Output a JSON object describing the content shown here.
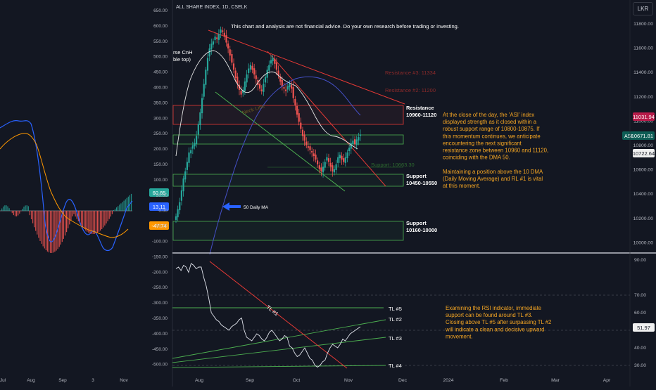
{
  "header": {
    "title": "ALL SHARE INDEX, 1D, CSELK",
    "currency_button": "LKR",
    "disclaimer": "This chart and analysis are not financial advice. Do your own research before trading or investing."
  },
  "colors": {
    "background": "#131722",
    "up": "#26a69a",
    "down": "#ef5350",
    "rsi_line": "#e0e3eb",
    "dma50": "#4550c8",
    "dma10": "#e6e6e6",
    "annotation_orange": "#f5a623",
    "trendline_red": "#e53935",
    "trendline_green": "#4caf50"
  },
  "left_panel": {
    "bubble_green": "60.85",
    "bubble_blue": "13.11",
    "bubble_orange": "-47.74",
    "axis_labels": [
      "650.00",
      "600.00",
      "550.00",
      "500.00",
      "450.00",
      "400.00",
      "350.00",
      "300.00",
      "250.00",
      "200.00",
      "150.00",
      "100.00",
      "50.00",
      "0.00",
      "-50.00",
      "-100.00",
      "-150.00",
      "-200.00",
      "-250.00",
      "-300.00",
      "-350.00",
      "-400.00",
      "-450.00",
      "-500.00"
    ],
    "time_labels": [
      "Jul",
      "Aug",
      "Sep",
      "3",
      "Nov"
    ]
  },
  "main_chart": {
    "pattern_label_line1": "rse CnH",
    "pattern_label_line2": "ble top)",
    "resistance_3": "Resistance #3: 11334",
    "resistance_2": "Resistance #2: 11200",
    "resistance_zone_line1": "Resistance",
    "resistance_zone_line2": "10960-11120",
    "neck_line": "Neck Line",
    "support_1_label": "Support: 10663.30",
    "support_zone_1_line1": "Support",
    "support_zone_1_line2": "10450-10550",
    "support_zone_2_line1": "Support",
    "support_zone_2_line2": "10160-10000",
    "dma_label": "50 Daily MA",
    "analysis_text": [
      "At the close of the day, the 'ASI' index",
      "displayed strength as it closed within a",
      "robust support range of 10800-10875. If",
      "this momentum continues, we anticipate",
      "encountering the next significant",
      "resistance zone between 10960 and 11120,",
      "coinciding with the DMA 50.",
      "",
      "Maintaining a position above the 10 DMA",
      "(Daily Moving Average) and RL #1 is vital",
      "at this moment."
    ],
    "price_axis": [
      "11800.00",
      "11600.00",
      "11400.00",
      "11200.00",
      "11000.00",
      "10800.00",
      "10600.00",
      "10400.00",
      "10200.00",
      "10000.00"
    ],
    "price_tag_red": "11031.94",
    "price_tag_asi_symbol": "ASI",
    "price_tag_asi": "10671.81",
    "price_tag_white": "10722.64"
  },
  "rsi_panel": {
    "axis_labels": [
      "90.00",
      "70.00",
      "60.00",
      "50.00",
      "40.00",
      "30.00"
    ],
    "rsi_tag": "51.97",
    "tl_labels": [
      "TL #5",
      "TL #2",
      "TL #3",
      "TL #4",
      "TL #1"
    ],
    "analysis_text": [
      "Examining the RSI indicator, immediate",
      "support can be found around TL #3.",
      "Closing above TL #5 after surpassing TL #2",
      "will indicate a clean and decisive upward",
      "movement."
    ]
  },
  "time_axis": [
    "Aug",
    "Sep",
    "Oct",
    "Nov",
    "Dec",
    "2024",
    "Feb",
    "Mar",
    "Apr"
  ],
  "chart_data": {
    "type": "candlestick",
    "title": "ALL SHARE INDEX, 1D, CSELK",
    "ylim": [
      9900,
      11950
    ],
    "closes": [
      10180,
      10240,
      10300,
      10400,
      10500,
      10560,
      10640,
      10720,
      10740,
      10780,
      10800,
      10860,
      10960,
      11060,
      11180,
      11300,
      11420,
      11520,
      11600,
      11640,
      11660,
      11700,
      11680,
      11720,
      11760,
      11740,
      11700,
      11650,
      11600,
      11540,
      11480,
      11420,
      11350,
      11300,
      11250,
      11210,
      11250,
      11320,
      11380,
      11430,
      11460,
      11420,
      11380,
      11340,
      11290,
      11260,
      11240,
      11300,
      11360,
      11420,
      11460,
      11500,
      11520,
      11470,
      11420,
      11370,
      11320,
      11280,
      11260,
      11240,
      11280,
      11300,
      11260,
      11180,
      11120,
      11040,
      10980,
      10920,
      10860,
      10820,
      10780,
      10760,
      10740,
      10720,
      10690,
      10660,
      10620,
      10580,
      10560,
      10600,
      10640,
      10680,
      10640,
      10600,
      10560,
      10580,
      10620,
      10680,
      10700,
      10660,
      10640,
      10680,
      10720,
      10760,
      10800,
      10820,
      10790,
      10830,
      10850,
      10872
    ],
    "rsi": [
      85,
      86,
      84,
      87,
      86,
      83,
      88,
      87,
      85,
      86,
      86,
      80,
      75,
      68,
      60,
      58,
      56,
      55,
      53,
      52,
      51,
      50,
      52,
      53,
      54,
      56,
      57,
      50,
      46,
      45,
      44,
      46,
      48,
      47,
      45,
      44,
      46,
      49,
      50,
      48,
      46,
      44,
      45,
      47,
      46,
      41,
      40,
      37,
      35,
      36,
      38,
      40,
      37,
      34,
      33,
      30,
      29,
      30,
      32,
      33,
      37,
      40,
      42,
      41,
      40,
      42,
      45,
      44,
      46,
      48,
      49,
      50,
      51,
      52
    ]
  }
}
